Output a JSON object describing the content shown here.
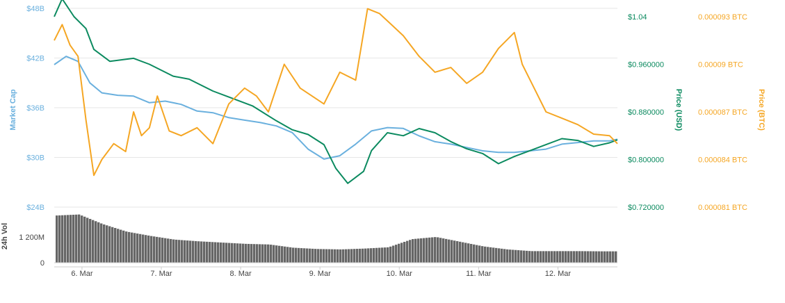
{
  "chart_data": {
    "type": "line",
    "x_ticks": [
      "6. Mar",
      "7. Mar",
      "8. Mar",
      "9. Mar",
      "10. Mar",
      "11. Mar",
      "12. Mar"
    ],
    "y_market_cap": {
      "label": "Market Cap",
      "ticks": [
        "$24B",
        "$30B",
        "$36B",
        "$42B",
        "$48B"
      ],
      "tick_values": [
        24,
        30,
        36,
        42,
        48
      ],
      "ylim": [
        24,
        48
      ]
    },
    "y_price_usd": {
      "label": "Price (USD)",
      "ticks": [
        "$0.720000",
        "$0.800000",
        "$0.880000",
        "$0.960000",
        "$1.04"
      ],
      "tick_values": [
        0.72,
        0.8,
        0.88,
        0.96,
        1.04
      ],
      "ylim": [
        0.72,
        1.04
      ]
    },
    "y_price_btc": {
      "label": "Price (BTC)",
      "ticks": [
        "0.000081 BTC",
        "0.000084 BTC",
        "0.000087 BTC",
        "0.00009 BTC",
        "0.000093 BTC"
      ],
      "tick_values": [
        8.1e-05,
        8.4e-05,
        8.7e-05,
        9e-05,
        9.3e-05
      ],
      "ylim": [
        8.1e-05,
        9.3e-05
      ]
    },
    "y_volume": {
      "label": "24h Vol",
      "ticks": [
        "0",
        "1 200M"
      ],
      "tick_values": [
        0,
        1200
      ],
      "ylim": [
        0,
        2400
      ]
    },
    "series": [
      {
        "name": "Market Cap",
        "axis": "market_cap",
        "color": "#6ab0de",
        "x": [
          0,
          0.15,
          0.3,
          0.45,
          0.6,
          0.8,
          1.0,
          1.2,
          1.4,
          1.6,
          1.8,
          2.0,
          2.2,
          2.4,
          2.6,
          2.8,
          3.0,
          3.2,
          3.4,
          3.6,
          3.8,
          4.0,
          4.2,
          4.4,
          4.6,
          4.8,
          5.0,
          5.2,
          5.4,
          5.6,
          5.8,
          6.0,
          6.2,
          6.4,
          6.6,
          6.8,
          7.0,
          7.1
        ],
        "values": [
          41.2,
          42.2,
          41.6,
          39.0,
          37.8,
          37.5,
          37.4,
          36.6,
          36.8,
          36.4,
          35.6,
          35.4,
          34.8,
          34.5,
          34.2,
          33.8,
          33.0,
          31.0,
          29.8,
          30.2,
          31.6,
          33.2,
          33.6,
          33.5,
          32.6,
          31.9,
          31.6,
          31.2,
          30.8,
          30.6,
          30.6,
          30.8,
          31.0,
          31.6,
          31.8,
          32.0,
          32.0,
          32.2
        ]
      },
      {
        "name": "Price (USD)",
        "axis": "price_usd",
        "color": "#0b8a5f",
        "x": [
          0,
          0.1,
          0.25,
          0.4,
          0.5,
          0.7,
          1.0,
          1.2,
          1.5,
          1.7,
          2.0,
          2.2,
          2.5,
          2.8,
          3.0,
          3.2,
          3.4,
          3.55,
          3.7,
          3.9,
          4.0,
          4.2,
          4.4,
          4.6,
          4.8,
          5.0,
          5.2,
          5.4,
          5.6,
          5.8,
          6.0,
          6.2,
          6.4,
          6.6,
          6.8,
          7.0,
          7.1
        ],
        "values": [
          1.04,
          1.07,
          1.04,
          1.02,
          0.985,
          0.965,
          0.97,
          0.96,
          0.94,
          0.935,
          0.915,
          0.905,
          0.89,
          0.865,
          0.85,
          0.842,
          0.825,
          0.785,
          0.76,
          0.78,
          0.815,
          0.845,
          0.84,
          0.852,
          0.845,
          0.83,
          0.818,
          0.81,
          0.793,
          0.805,
          0.815,
          0.825,
          0.835,
          0.832,
          0.822,
          0.828,
          0.833
        ]
      },
      {
        "name": "Price (BTC)",
        "axis": "price_btc",
        "color": "#f5a623",
        "x": [
          0,
          0.1,
          0.2,
          0.3,
          0.4,
          0.5,
          0.6,
          0.75,
          0.9,
          1.0,
          1.1,
          1.2,
          1.3,
          1.45,
          1.6,
          1.8,
          2.0,
          2.2,
          2.4,
          2.55,
          2.7,
          2.9,
          3.1,
          3.25,
          3.4,
          3.6,
          3.8,
          3.95,
          4.1,
          4.25,
          4.4,
          4.6,
          4.8,
          5.0,
          5.2,
          5.4,
          5.6,
          5.8,
          5.9,
          6.0,
          6.2,
          6.4,
          6.6,
          6.8,
          7.0,
          7.1
        ],
        "values": [
          9.15e-05,
          9.25e-05,
          9.12e-05,
          9.05e-05,
          8.65e-05,
          8.3e-05,
          8.4e-05,
          8.5e-05,
          8.45e-05,
          8.7e-05,
          8.55e-05,
          8.6e-05,
          8.8e-05,
          8.58e-05,
          8.55e-05,
          8.6e-05,
          8.5e-05,
          8.75e-05,
          8.85e-05,
          8.8e-05,
          8.7e-05,
          9e-05,
          8.85e-05,
          8.8e-05,
          8.75e-05,
          8.95e-05,
          8.9e-05,
          9.35e-05,
          9.32e-05,
          9.25e-05,
          9.18e-05,
          9.05e-05,
          8.95e-05,
          8.98e-05,
          8.88e-05,
          8.95e-05,
          9.1e-05,
          9.2e-05,
          9e-05,
          8.9e-05,
          8.7e-05,
          8.66e-05,
          8.62e-05,
          8.56e-05,
          8.55e-05,
          8.5e-05
        ]
      },
      {
        "name": "24h Vol",
        "axis": "volume",
        "type": "bar",
        "color": "#666666",
        "x": [
          0,
          0.3,
          0.6,
          0.9,
          1.2,
          1.5,
          1.8,
          2.1,
          2.4,
          2.7,
          3.0,
          3.3,
          3.6,
          3.9,
          4.2,
          4.5,
          4.8,
          5.1,
          5.4,
          5.7,
          6.0,
          6.3,
          6.6,
          6.9,
          7.1
        ],
        "values": [
          2200,
          2250,
          1800,
          1450,
          1250,
          1080,
          1000,
          940,
          880,
          850,
          700,
          640,
          620,
          660,
          720,
          1100,
          1200,
          980,
          760,
          620,
          540,
          540,
          540,
          530,
          530
        ]
      }
    ]
  }
}
